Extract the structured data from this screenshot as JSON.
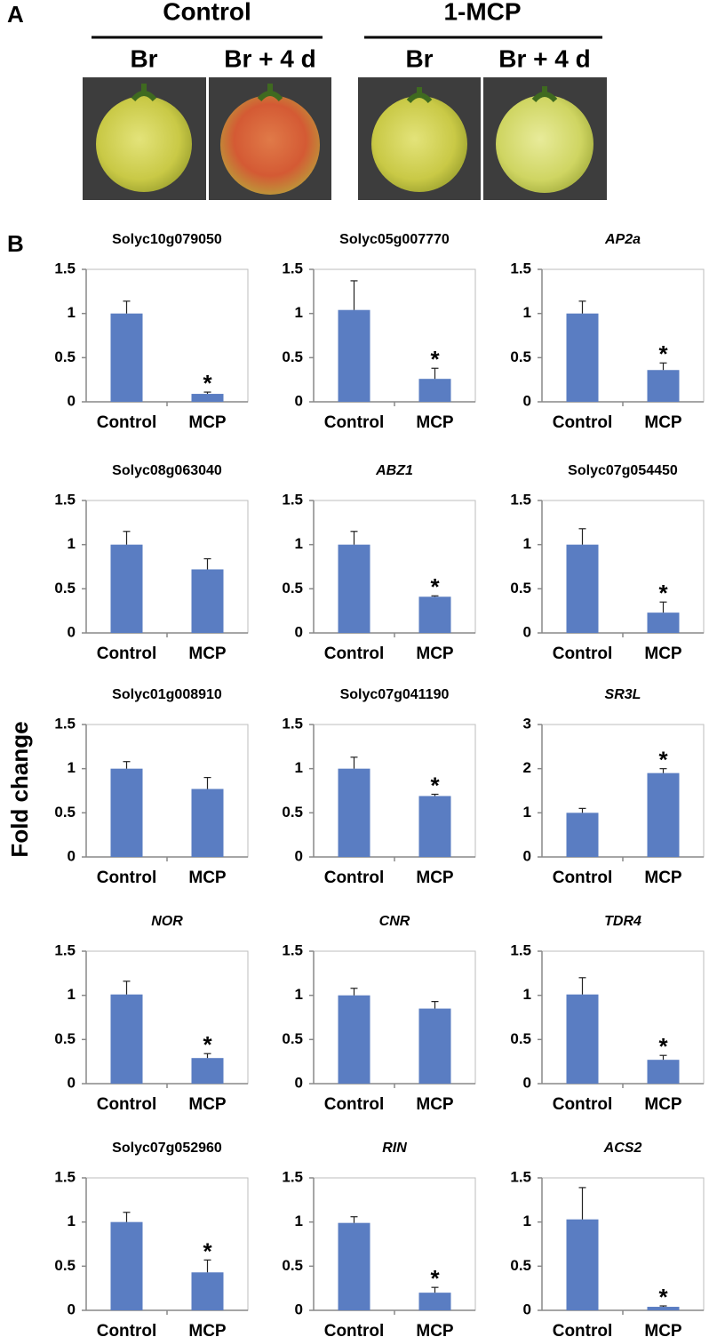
{
  "panel_a": {
    "label": "A",
    "groups": [
      {
        "label": "Control",
        "samples": [
          "Br",
          "Br + 4 d"
        ]
      },
      {
        "label": "1-MCP",
        "samples": [
          "Br",
          "Br + 4 d"
        ]
      }
    ]
  },
  "panel_b": {
    "label": "B",
    "y_axis_label": "Fold change"
  },
  "chart_data": [
    {
      "type": "bar",
      "title": "Solyc10g079050",
      "categories": [
        "Control",
        "MCP"
      ],
      "values": [
        1.0,
        0.09
      ],
      "errors": [
        0.14,
        0.02
      ],
      "significance": [
        null,
        "*"
      ],
      "color": "#5a7dc2",
      "ylim": [
        0,
        1.5
      ],
      "yticks": [
        0,
        0.5,
        1,
        1.5
      ]
    },
    {
      "type": "bar",
      "title": "Solyc05g007770",
      "categories": [
        "Control",
        "MCP"
      ],
      "values": [
        1.04,
        0.26
      ],
      "errors": [
        0.33,
        0.12
      ],
      "significance": [
        null,
        "*"
      ],
      "color": "#5a7dc2",
      "ylim": [
        0,
        1.5
      ],
      "yticks": [
        0,
        0.5,
        1,
        1.5
      ]
    },
    {
      "type": "bar",
      "title": "AP2a",
      "title_italic": true,
      "categories": [
        "Control",
        "MCP"
      ],
      "values": [
        1.0,
        0.36
      ],
      "errors": [
        0.14,
        0.08
      ],
      "significance": [
        null,
        "*"
      ],
      "color": "#5a7dc2",
      "ylim": [
        0,
        1.5
      ],
      "yticks": [
        0,
        0.5,
        1,
        1.5
      ]
    },
    {
      "type": "bar",
      "title": "Solyc08g063040",
      "categories": [
        "Control",
        "MCP"
      ],
      "values": [
        1.0,
        0.72
      ],
      "errors": [
        0.15,
        0.12
      ],
      "significance": [
        null,
        null
      ],
      "color": "#5a7dc2",
      "ylim": [
        0,
        1.5
      ],
      "yticks": [
        0,
        0.5,
        1,
        1.5
      ]
    },
    {
      "type": "bar",
      "title": "ABZ1",
      "title_italic": true,
      "categories": [
        "Control",
        "MCP"
      ],
      "values": [
        1.0,
        0.41
      ],
      "errors": [
        0.15,
        0.01
      ],
      "significance": [
        null,
        "*"
      ],
      "color": "#5a7dc2",
      "ylim": [
        0,
        1.5
      ],
      "yticks": [
        0,
        0.5,
        1,
        1.5
      ]
    },
    {
      "type": "bar",
      "title": "Solyc07g054450",
      "categories": [
        "Control",
        "MCP"
      ],
      "values": [
        1.0,
        0.23
      ],
      "errors": [
        0.18,
        0.12
      ],
      "significance": [
        null,
        "*"
      ],
      "color": "#5a7dc2",
      "ylim": [
        0,
        1.5
      ],
      "yticks": [
        0,
        0.5,
        1,
        1.5
      ]
    },
    {
      "type": "bar",
      "title": "Solyc01g008910",
      "categories": [
        "Control",
        "MCP"
      ],
      "values": [
        1.0,
        0.77
      ],
      "errors": [
        0.08,
        0.13
      ],
      "significance": [
        null,
        null
      ],
      "color": "#5a7dc2",
      "ylim": [
        0,
        1.5
      ],
      "yticks": [
        0,
        0.5,
        1,
        1.5
      ]
    },
    {
      "type": "bar",
      "title": "Solyc07g041190",
      "categories": [
        "Control",
        "MCP"
      ],
      "values": [
        1.0,
        0.69
      ],
      "errors": [
        0.13,
        0.02
      ],
      "significance": [
        null,
        "*"
      ],
      "color": "#5a7dc2",
      "ylim": [
        0,
        1.5
      ],
      "yticks": [
        0,
        0.5,
        1,
        1.5
      ]
    },
    {
      "type": "bar",
      "title": "SR3L",
      "title_italic": true,
      "categories": [
        "Control",
        "MCP"
      ],
      "values": [
        1.0,
        1.9
      ],
      "errors": [
        0.1,
        0.1
      ],
      "significance": [
        null,
        "*"
      ],
      "color": "#5a7dc2",
      "ylim": [
        0,
        3
      ],
      "yticks": [
        0,
        1,
        2,
        3
      ]
    },
    {
      "type": "bar",
      "title": "NOR",
      "title_italic": true,
      "categories": [
        "Control",
        "MCP"
      ],
      "values": [
        1.01,
        0.29
      ],
      "errors": [
        0.15,
        0.05
      ],
      "significance": [
        null,
        "*"
      ],
      "color": "#5a7dc2",
      "ylim": [
        0,
        1.5
      ],
      "yticks": [
        0,
        0.5,
        1,
        1.5
      ]
    },
    {
      "type": "bar",
      "title": "CNR",
      "title_italic": true,
      "categories": [
        "Control",
        "MCP"
      ],
      "values": [
        1.0,
        0.85
      ],
      "errors": [
        0.08,
        0.08
      ],
      "significance": [
        null,
        null
      ],
      "color": "#5a7dc2",
      "ylim": [
        0,
        1.5
      ],
      "yticks": [
        0,
        0.5,
        1,
        1.5
      ]
    },
    {
      "type": "bar",
      "title": "TDR4",
      "title_italic": true,
      "categories": [
        "Control",
        "MCP"
      ],
      "values": [
        1.01,
        0.27
      ],
      "errors": [
        0.19,
        0.05
      ],
      "significance": [
        null,
        "*"
      ],
      "color": "#5a7dc2",
      "ylim": [
        0,
        1.5
      ],
      "yticks": [
        0,
        0.5,
        1,
        1.5
      ]
    },
    {
      "type": "bar",
      "title": "Solyc07g052960",
      "categories": [
        "Control",
        "MCP"
      ],
      "values": [
        1.0,
        0.43
      ],
      "errors": [
        0.11,
        0.14
      ],
      "significance": [
        null,
        "*"
      ],
      "color": "#5a7dc2",
      "ylim": [
        0,
        1.5
      ],
      "yticks": [
        0,
        0.5,
        1,
        1.5
      ]
    },
    {
      "type": "bar",
      "title": "RIN",
      "title_italic": true,
      "categories": [
        "Control",
        "MCP"
      ],
      "values": [
        0.99,
        0.2
      ],
      "errors": [
        0.07,
        0.06
      ],
      "significance": [
        null,
        "*"
      ],
      "color": "#5a7dc2",
      "ylim": [
        0,
        1.5
      ],
      "yticks": [
        0,
        0.5,
        1,
        1.5
      ]
    },
    {
      "type": "bar",
      "title": "ACS2",
      "title_italic": true,
      "categories": [
        "Control",
        "MCP"
      ],
      "values": [
        1.03,
        0.04
      ],
      "errors": [
        0.36,
        0.01
      ],
      "significance": [
        null,
        "*"
      ],
      "color": "#5a7dc2",
      "ylim": [
        0,
        1.5
      ],
      "yticks": [
        0,
        0.5,
        1,
        1.5
      ]
    }
  ]
}
